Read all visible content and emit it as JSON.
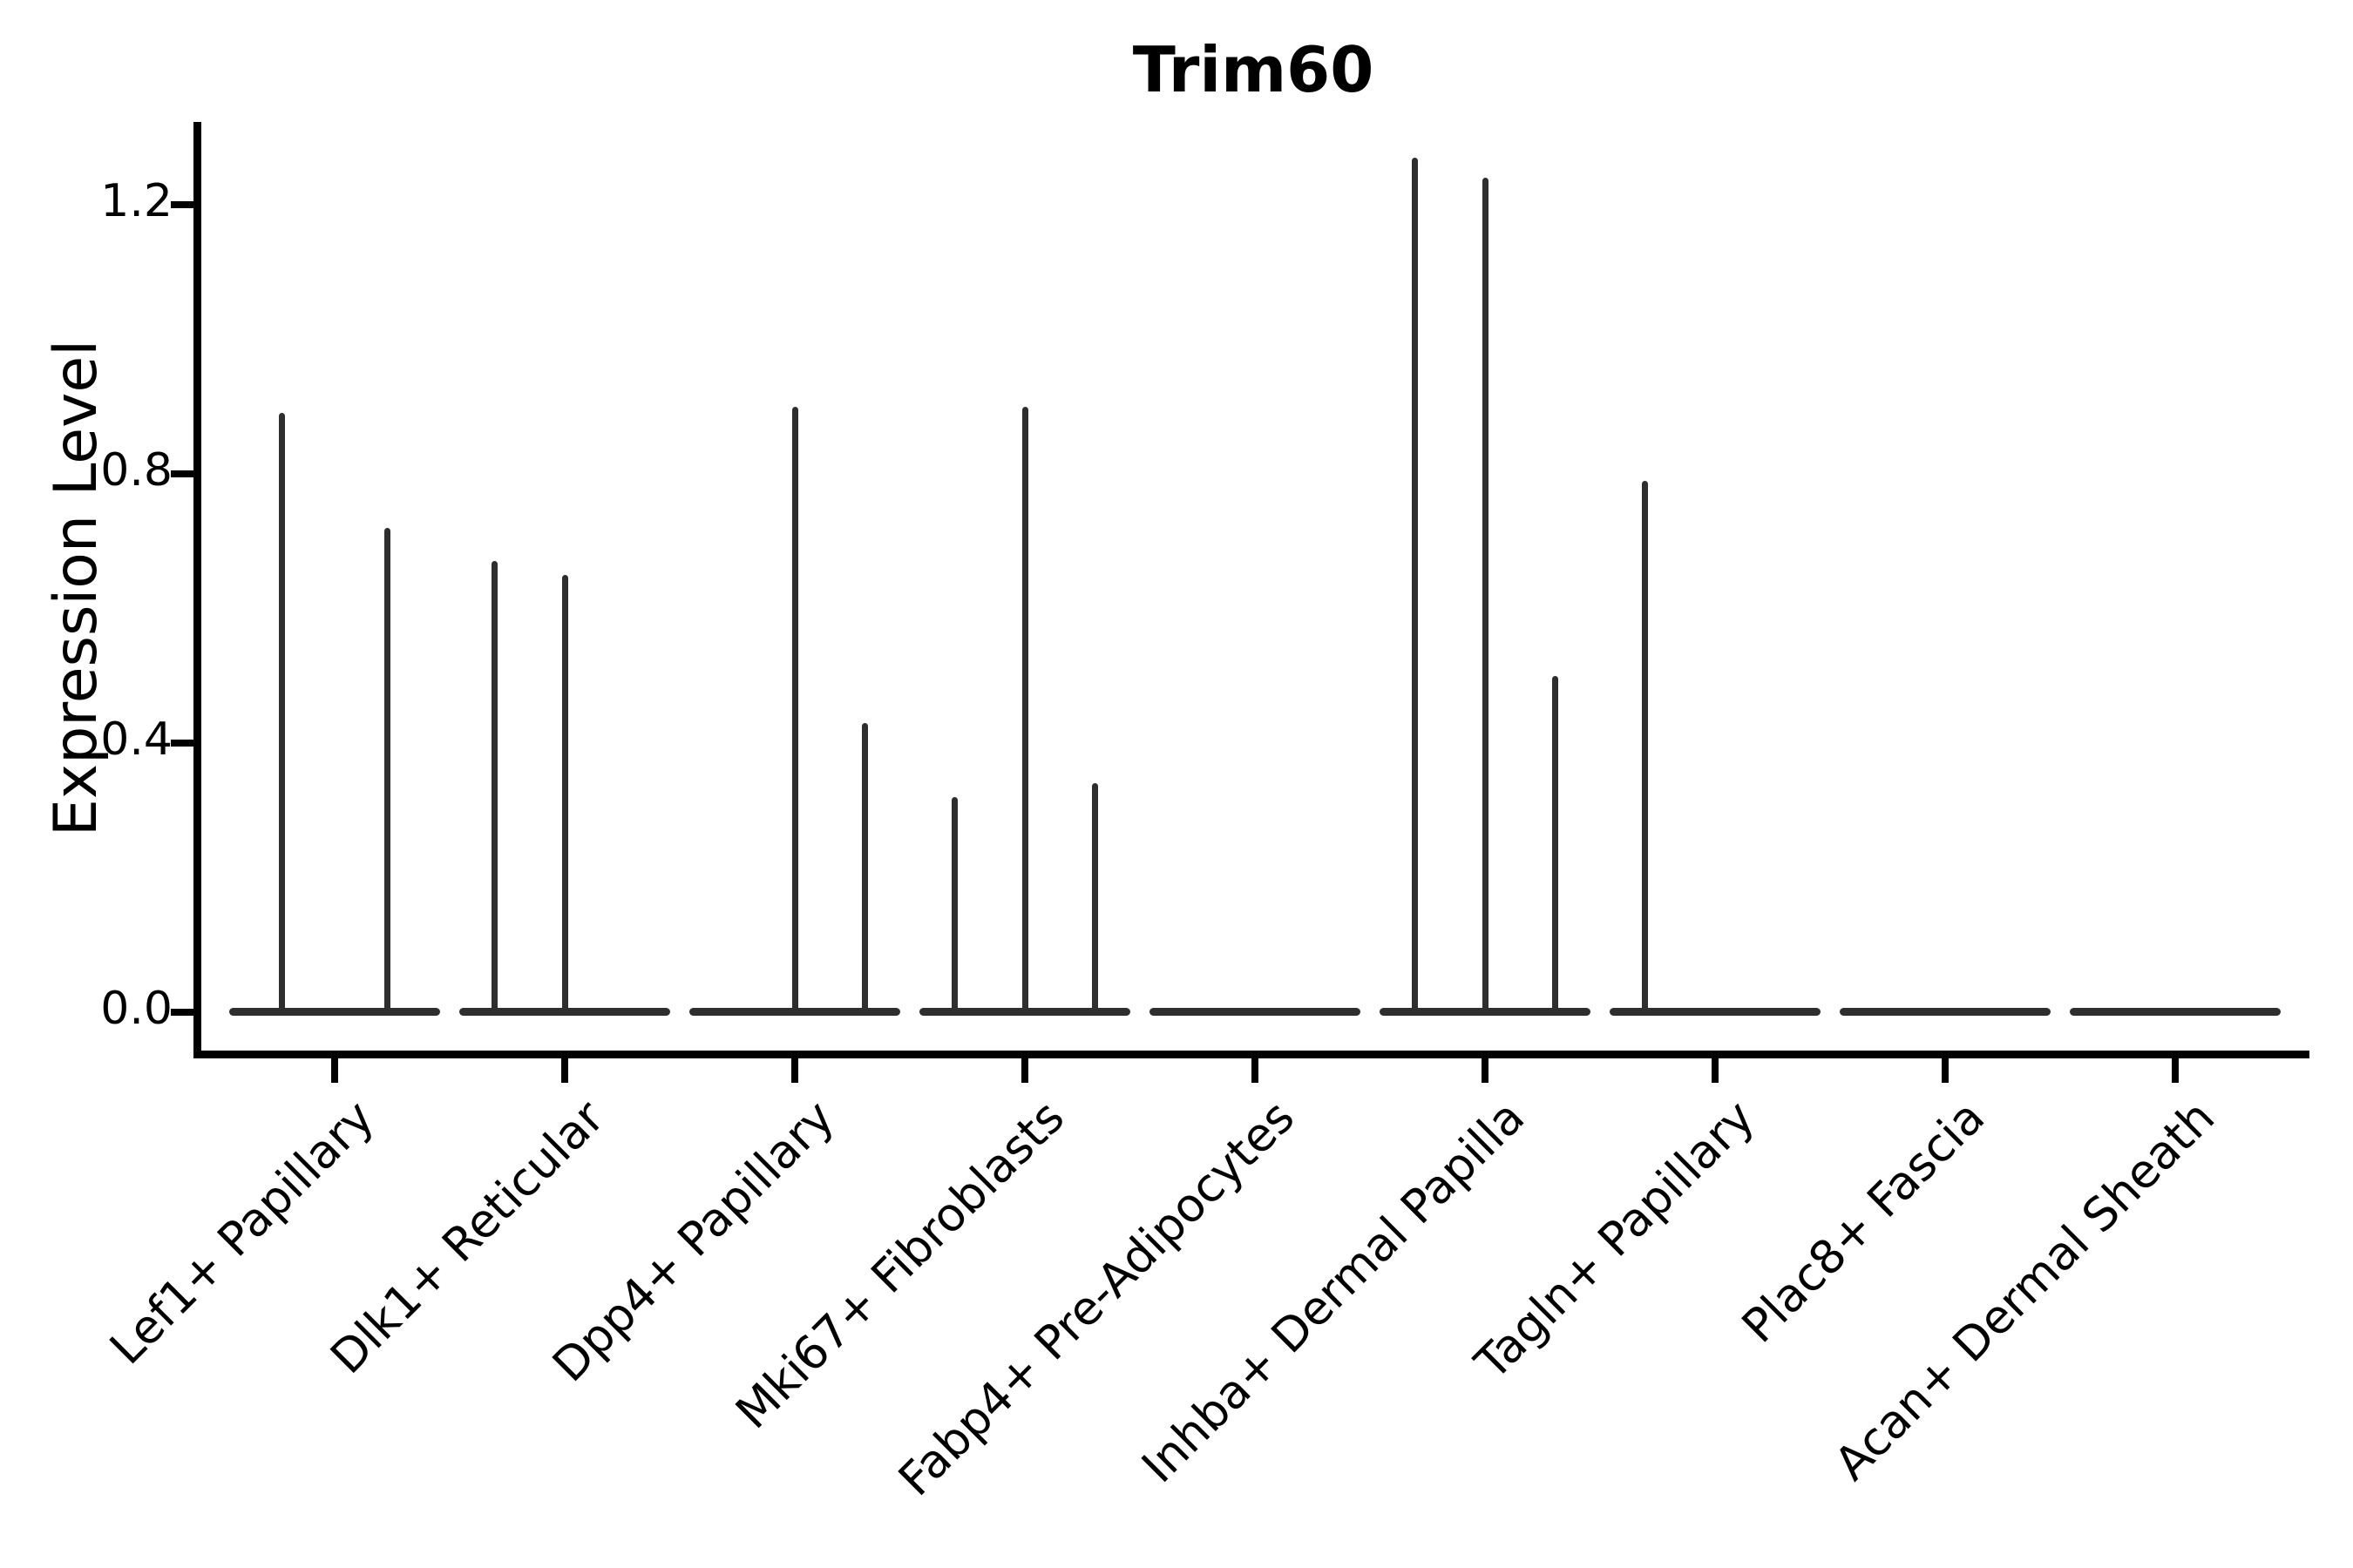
{
  "title": "Trim60",
  "axes": {
    "ylabel": "Expression Level"
  },
  "colors": {
    "violin": "#2e2e2e",
    "axis": "#000000",
    "background": "#ffffff"
  },
  "chart_data": {
    "type": "violin",
    "title": "Trim60",
    "xlabel": "",
    "ylabel": "Expression Level",
    "ylim": [
      -0.065,
      1.33
    ],
    "yticks": [
      0.0,
      0.4,
      0.8,
      1.2
    ],
    "ytick_labels": [
      "0.0",
      "0.4",
      "0.8",
      "1.2"
    ],
    "grid": false,
    "legend": "none",
    "note": "Violin plot; nearly all density mass sits at expression 0 (flat base line per group). Each category holds 2-3 thin violins; 'violins' lists the max expression (spike top) per violin, 0 = completely flat.",
    "categories": [
      {
        "label": "Lef1+ Papillary",
        "violins": [
          0.89,
          0.72
        ]
      },
      {
        "label": "Dlk1+ Reticular",
        "violins": [
          0.67,
          0.65,
          0
        ]
      },
      {
        "label": "Dpp4+ Papillary",
        "violins": [
          0,
          0.9,
          0.43
        ]
      },
      {
        "label": "Mki67+ Fibroblasts",
        "violins": [
          0.32,
          0.9,
          0.34
        ]
      },
      {
        "label": "Fabp4+ Pre-Adipocytes",
        "violins": [
          0,
          0,
          0
        ]
      },
      {
        "label": "Inhba+ Dermal Papilla",
        "violins": [
          1.27,
          1.24,
          0.5
        ]
      },
      {
        "label": "Tagln+ Papillary",
        "violins": [
          0.79,
          0,
          0
        ]
      },
      {
        "label": "Plac8+ Fascia",
        "violins": [
          0,
          0,
          0
        ]
      },
      {
        "label": "Acan+ Dermal Sheath",
        "violins": [
          0,
          0,
          0
        ]
      }
    ]
  }
}
